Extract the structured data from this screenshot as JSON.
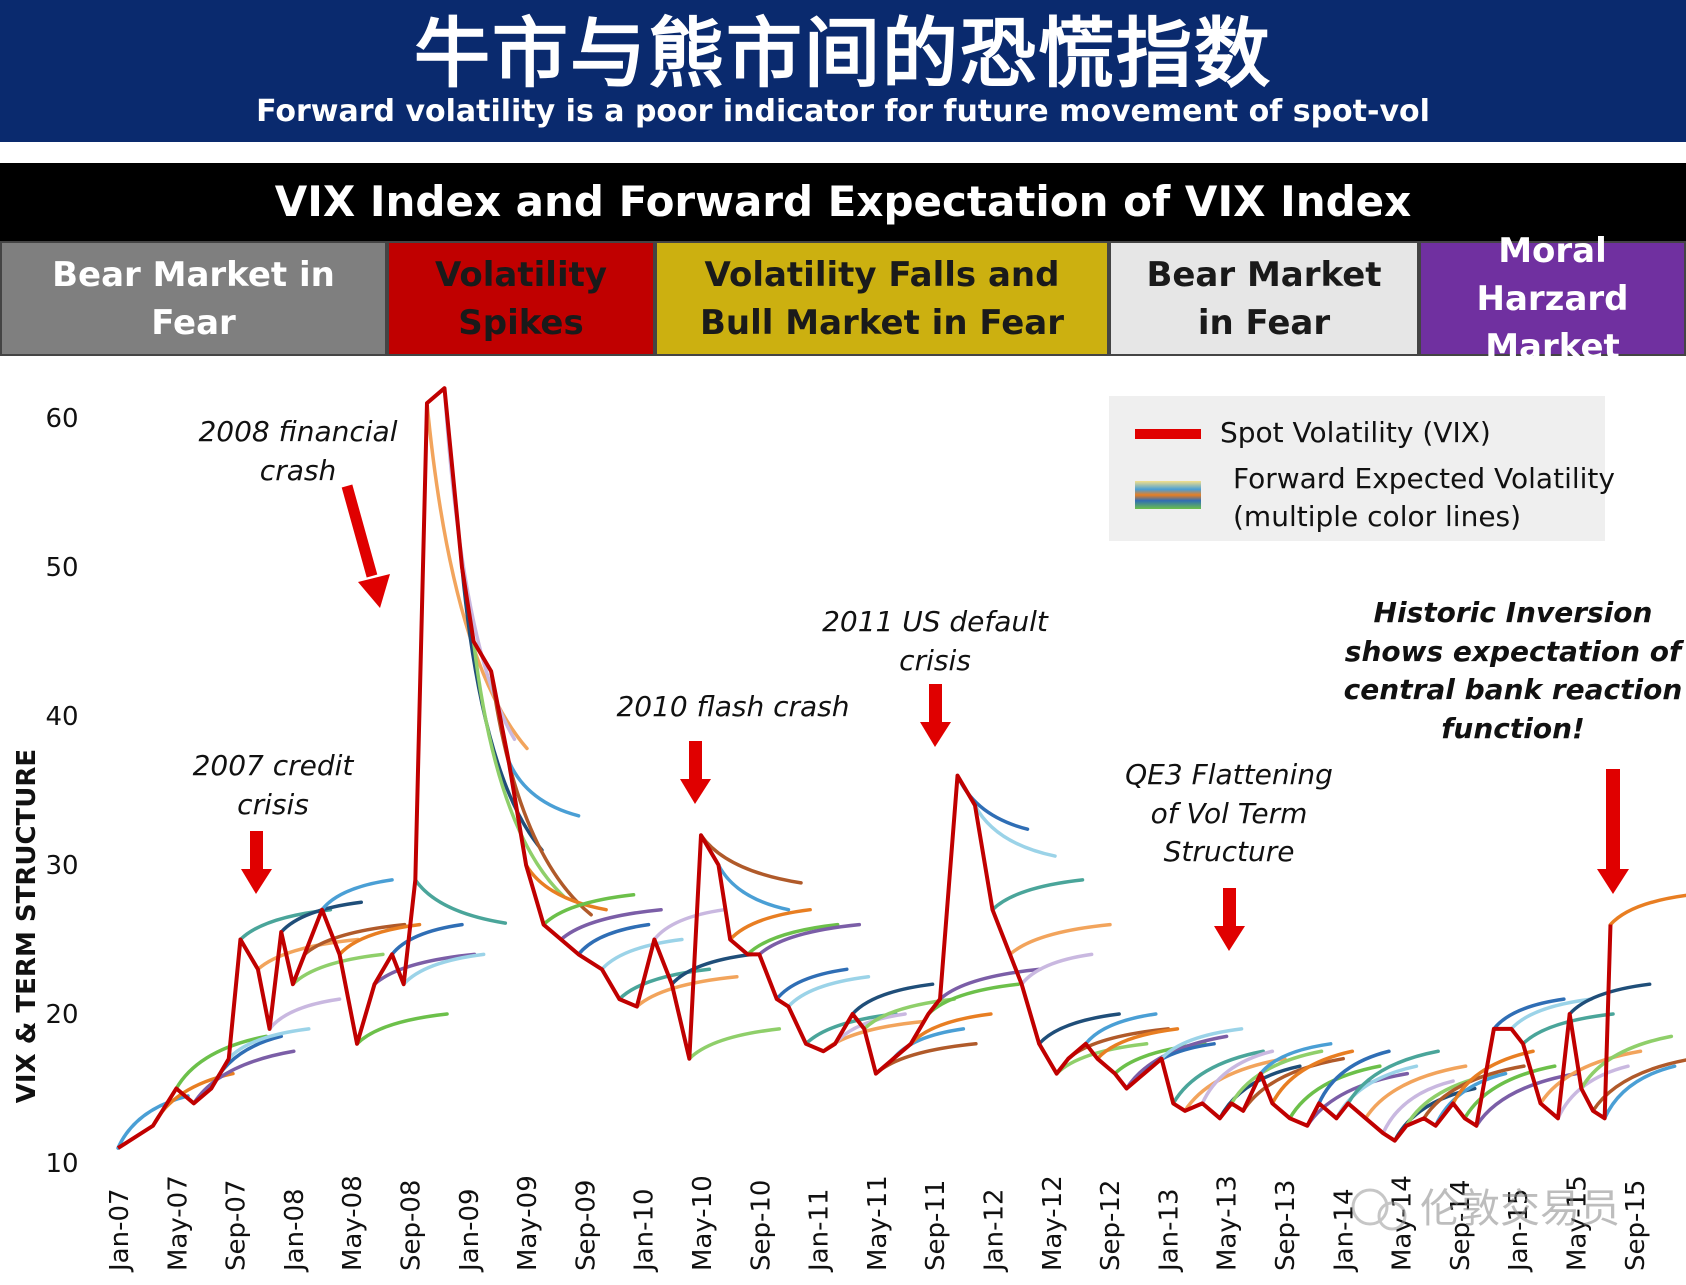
{
  "header": {
    "title_cn": "牛市与熊市间的恐慌指数",
    "subtitle": "Forward volatility is a poor indicator for future movement of spot-vol"
  },
  "chart_title": "VIX Index and Forward Expectation of VIX Index",
  "phases": [
    {
      "line1": "Bear Market in",
      "line2": "Fear",
      "bg": "#7f7f7f",
      "fg": "#ffffff"
    },
    {
      "line1": "Volatility",
      "line2": "Spikes",
      "bg": "#c00000",
      "fg": "#1a1a1a"
    },
    {
      "line1": "Volatility Falls and",
      "line2": "Bull Market in Fear",
      "bg": "#ccb010",
      "fg": "#1a1a1a"
    },
    {
      "line1": "Bear Market",
      "line2": "in Fear",
      "bg": "#e6e6e6",
      "fg": "#1a1a1a"
    },
    {
      "line1": "Moral Harzard",
      "line2": "Market",
      "bg": "#7030a0",
      "fg": "#ffffff"
    }
  ],
  "annotations": {
    "a2008": {
      "l1": "2008 financial",
      "l2": "crash"
    },
    "a2007": {
      "l1": "2007 credit",
      "l2": "crisis"
    },
    "a2010": {
      "l1": "2010 flash crash"
    },
    "a2011": {
      "l1": "2011 US default",
      "l2": "crisis"
    },
    "aqe3": {
      "l1": "QE3 Flattening",
      "l2": "of Vol Term",
      "l3": "Structure"
    },
    "ahist": {
      "l1": "Historic Inversion",
      "l2": "shows expectation of",
      "l3": "central bank reaction",
      "l4": "function!"
    }
  },
  "legend": {
    "spot": "Spot Volatility (VIX)",
    "fwd_l1": "Forward Expected Volatility",
    "fwd_l2": "(multiple color lines)"
  },
  "watermark": "伦敦交易员",
  "colors": {
    "spot": "#c00000",
    "arrow": "#e00000",
    "forward": [
      "#4a9fd5",
      "#e87e22",
      "#6cc04a",
      "#7b5ea7",
      "#2f6eb5",
      "#9bd3e8",
      "#4aa59a",
      "#f2a45c",
      "#c9b8e0",
      "#1f4e79",
      "#8fcf6a",
      "#b05a2a"
    ]
  },
  "chart_data": {
    "type": "line",
    "title": "VIX Index and Forward Expectation of VIX Index",
    "xlabel": "",
    "ylabel": "VIX & TERM STRUCTURE",
    "ylim": [
      10,
      60
    ],
    "yticks": [
      10,
      20,
      30,
      40,
      50,
      60
    ],
    "xticks": [
      "Jan-07",
      "May-07",
      "Sep-07",
      "Jan-08",
      "May-08",
      "Sep-08",
      "Jan-09",
      "May-09",
      "Sep-09",
      "Jan-10",
      "May-10",
      "Sep-10",
      "Jan-11",
      "May-11",
      "Sep-11",
      "Jan-12",
      "May-12",
      "Sep-12",
      "Jan-13",
      "May-13",
      "Sep-13",
      "Jan-14",
      "May-14",
      "Sep-14",
      "Jan-15",
      "May-15",
      "Sep-15"
    ],
    "series": [
      {
        "name": "Spot Volatility (VIX)",
        "points": [
          [
            0,
            11
          ],
          [
            0.6,
            12.5
          ],
          [
            1,
            15
          ],
          [
            1.3,
            14
          ],
          [
            1.6,
            15
          ],
          [
            1.9,
            17
          ],
          [
            2.1,
            25
          ],
          [
            2.4,
            23
          ],
          [
            2.6,
            19
          ],
          [
            2.8,
            25.5
          ],
          [
            3.0,
            22
          ],
          [
            3.2,
            24
          ],
          [
            3.5,
            27
          ],
          [
            3.8,
            24
          ],
          [
            4.1,
            18
          ],
          [
            4.4,
            22
          ],
          [
            4.7,
            24
          ],
          [
            4.9,
            22
          ],
          [
            5.1,
            29
          ],
          [
            5.3,
            61
          ],
          [
            5.6,
            62
          ],
          [
            5.9,
            50
          ],
          [
            6.1,
            45
          ],
          [
            6.4,
            43
          ],
          [
            6.7,
            37
          ],
          [
            7.0,
            30
          ],
          [
            7.3,
            26
          ],
          [
            7.6,
            25
          ],
          [
            7.9,
            24
          ],
          [
            8.3,
            23
          ],
          [
            8.6,
            21
          ],
          [
            8.9,
            20.5
          ],
          [
            9.2,
            25
          ],
          [
            9.5,
            22
          ],
          [
            9.8,
            17
          ],
          [
            10.0,
            32
          ],
          [
            10.3,
            30
          ],
          [
            10.5,
            25
          ],
          [
            10.8,
            24
          ],
          [
            11.0,
            24
          ],
          [
            11.3,
            21
          ],
          [
            11.5,
            20.5
          ],
          [
            11.8,
            18
          ],
          [
            12.1,
            17.5
          ],
          [
            12.3,
            18
          ],
          [
            12.6,
            20
          ],
          [
            12.8,
            19
          ],
          [
            13.0,
            16
          ],
          [
            13.3,
            17
          ],
          [
            13.6,
            18
          ],
          [
            13.9,
            20
          ],
          [
            14.1,
            21
          ],
          [
            14.4,
            36
          ],
          [
            14.7,
            34
          ],
          [
            15.0,
            27
          ],
          [
            15.3,
            24
          ],
          [
            15.5,
            22
          ],
          [
            15.8,
            18
          ],
          [
            16.1,
            16
          ],
          [
            16.3,
            17
          ],
          [
            16.6,
            18
          ],
          [
            16.8,
            17
          ],
          [
            17.1,
            16
          ],
          [
            17.3,
            15
          ],
          [
            17.6,
            16
          ],
          [
            17.9,
            17
          ],
          [
            18.1,
            14
          ],
          [
            18.3,
            13.5
          ],
          [
            18.6,
            14
          ],
          [
            18.9,
            13
          ],
          [
            19.1,
            14
          ],
          [
            19.3,
            13.5
          ],
          [
            19.6,
            16
          ],
          [
            19.8,
            14
          ],
          [
            20.1,
            13
          ],
          [
            20.4,
            12.5
          ],
          [
            20.6,
            14
          ],
          [
            20.9,
            13
          ],
          [
            21.1,
            14
          ],
          [
            21.4,
            13
          ],
          [
            21.7,
            12
          ],
          [
            21.9,
            11.5
          ],
          [
            22.1,
            12.5
          ],
          [
            22.4,
            13
          ],
          [
            22.6,
            12.5
          ],
          [
            22.9,
            14
          ],
          [
            23.1,
            13
          ],
          [
            23.3,
            12.5
          ],
          [
            23.6,
            19
          ],
          [
            23.9,
            19
          ],
          [
            24.1,
            18
          ],
          [
            24.4,
            14
          ],
          [
            24.7,
            13
          ],
          [
            24.9,
            20
          ],
          [
            25.1,
            15
          ],
          [
            25.3,
            13.5
          ],
          [
            25.5,
            13
          ],
          [
            25.6,
            26
          ]
        ]
      }
    ],
    "forward_curves_note": "Multiple forward expectation curves starting from spot points and rising toward longer-dated levels"
  }
}
